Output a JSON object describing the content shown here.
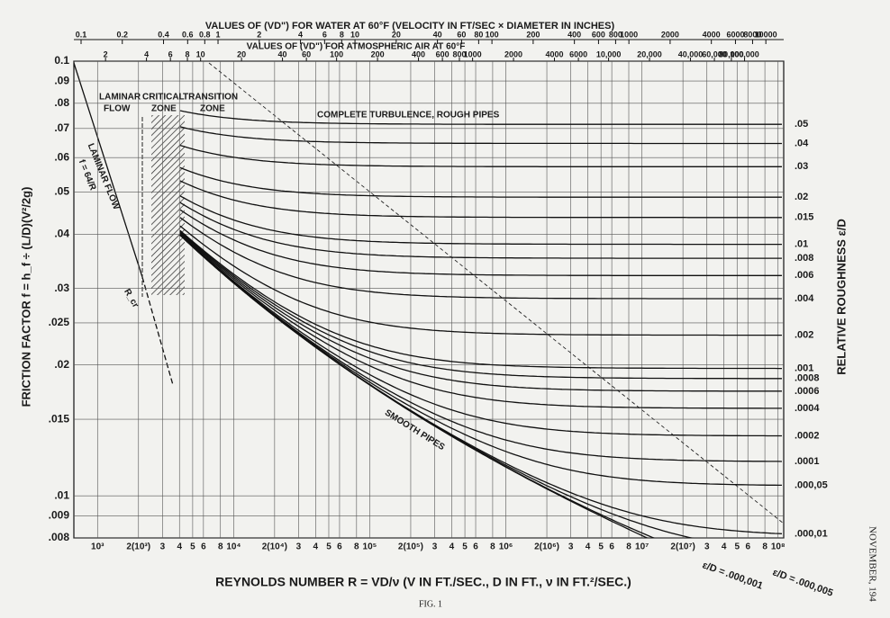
{
  "chart_data": {
    "type": "moody",
    "water_axis_title": "VALUES OF (VD\") FOR WATER AT 60°F (VELOCITY IN FT/SEC × DIAMETER IN INCHES)",
    "air_axis_title": "VALUES OF (VD\") FOR ATMOSPHERIC AIR AT 60°F",
    "x_label": "REYNOLDS NUMBER  R = VD/ν   (V IN FT./SEC., D IN FT., ν IN FT.²/SEC.)",
    "y_label": "FRICTION FACTOR  f = h_f ÷ (L/D)(V²/2g)",
    "y2_label": "RELATIVE ROUGHNESS ε/D",
    "caption": "FIG. 1",
    "margin_note": "NOVEMBER, 194",
    "annotations": [
      "LAMINAR",
      "FLOW",
      "CRITICAL",
      "ZONE",
      "TRANSITION",
      "ZONE",
      "COMPLETE TURBULENCE, ROUGH PIPES",
      "LAMINAR FLOW",
      "f = 64/R",
      "R_cr",
      "SMOOTH PIPES"
    ],
    "xlim": [
      670,
      110000000
    ],
    "xlog": true,
    "xticks": [
      {
        "value": 1000,
        "label": "10³"
      },
      {
        "value": 2000,
        "label": "2(10³)"
      },
      {
        "value": 3000,
        "label": "3"
      },
      {
        "value": 4000,
        "label": "4"
      },
      {
        "value": 5000,
        "label": "5"
      },
      {
        "value": 6000,
        "label": "6"
      },
      {
        "value": 8000,
        "label": "8"
      },
      {
        "value": 10000,
        "label": "10⁴"
      },
      {
        "value": 20000,
        "label": "2(10⁴)"
      },
      {
        "value": 30000,
        "label": "3"
      },
      {
        "value": 40000,
        "label": "4"
      },
      {
        "value": 50000,
        "label": "5"
      },
      {
        "value": 60000,
        "label": "6"
      },
      {
        "value": 80000,
        "label": "8"
      },
      {
        "value": 100000,
        "label": "10⁵"
      },
      {
        "value": 200000,
        "label": "2(10⁵)"
      },
      {
        "value": 300000,
        "label": "3"
      },
      {
        "value": 400000,
        "label": "4"
      },
      {
        "value": 500000,
        "label": "5"
      },
      {
        "value": 600000,
        "label": "6"
      },
      {
        "value": 800000,
        "label": "8"
      },
      {
        "value": 1000000,
        "label": "10⁶"
      },
      {
        "value": 2000000,
        "label": "2(10⁶)"
      },
      {
        "value": 3000000,
        "label": "3"
      },
      {
        "value": 4000000,
        "label": "4"
      },
      {
        "value": 5000000,
        "label": "5"
      },
      {
        "value": 6000000,
        "label": "6"
      },
      {
        "value": 8000000,
        "label": "8"
      },
      {
        "value": 10000000,
        "label": "10⁷"
      },
      {
        "value": 20000000,
        "label": "2(10⁷)"
      },
      {
        "value": 30000000,
        "label": "3"
      },
      {
        "value": 40000000,
        "label": "4"
      },
      {
        "value": 50000000,
        "label": "5"
      },
      {
        "value": 60000000,
        "label": "6"
      },
      {
        "value": 80000000,
        "label": "8"
      },
      {
        "value": 100000000,
        "label": "10⁸"
      }
    ],
    "ylim": [
      0.008,
      0.1
    ],
    "ylog": true,
    "yticks": [
      0.1,
      {
        "value": 0.09,
        "label": ".09"
      },
      {
        "value": 0.08,
        "label": ".08"
      },
      {
        "value": 0.07,
        "label": ".07"
      },
      {
        "value": 0.06,
        "label": ".06"
      },
      {
        "value": 0.05,
        "label": ".05"
      },
      {
        "value": 0.04,
        "label": ".04"
      },
      {
        "value": 0.03,
        "label": ".03"
      },
      {
        "value": 0.025,
        "label": ".025"
      },
      {
        "value": 0.02,
        "label": ".02"
      },
      {
        "value": 0.015,
        "label": ".015"
      },
      {
        "value": 0.01,
        "label": ".01"
      },
      {
        "value": 0.009,
        "label": ".009"
      },
      {
        "value": 0.008,
        "label": ".008"
      }
    ],
    "grid": true,
    "x2lim": [
      0.0886,
      13500
    ],
    "x2ticks": [
      0.1,
      0.2,
      0.4,
      0.6,
      0.8,
      1,
      2,
      4,
      6,
      8,
      10,
      20,
      40,
      60,
      80,
      100,
      200,
      400,
      600,
      800,
      1000,
      2000,
      4000,
      6000,
      8000,
      10000
    ],
    "x3lim": [
      1.17,
      194000
    ],
    "x3ticks": [
      2,
      4,
      6,
      8,
      10,
      20,
      40,
      60,
      100,
      200,
      400,
      600,
      800,
      1000,
      2000,
      4000,
      6000,
      {
        "value": 10000,
        "label": "10,000"
      },
      {
        "value": 20000,
        "label": "20,000"
      },
      {
        "value": 40000,
        "label": "40,000"
      },
      {
        "value": 60000,
        "label": "60,000"
      },
      {
        "value": 80000,
        "label": "80,000"
      },
      {
        "value": 100000,
        "label": "100,000"
      }
    ],
    "roughness_prefix": "ε/D =",
    "roughness": {
      "values": [
        0.05,
        0.04,
        0.03,
        0.02,
        0.015,
        0.01,
        0.008,
        0.006,
        0.004,
        0.002,
        0.001,
        0.0008,
        0.0006,
        0.0004,
        0.0002,
        0.0001,
        5e-05,
        1e-05,
        5e-06,
        1e-06
      ],
      "value_labels": [
        ".05",
        ".04",
        ".03",
        ".02",
        ".015",
        ".01",
        ".008",
        ".006",
        ".004",
        ".002",
        ".001",
        ".0008",
        ".0006",
        ".0004",
        ".0002",
        ".0001",
        ".000,05",
        ".000,01",
        ".000,005",
        ".000,001"
      ]
    }
  }
}
